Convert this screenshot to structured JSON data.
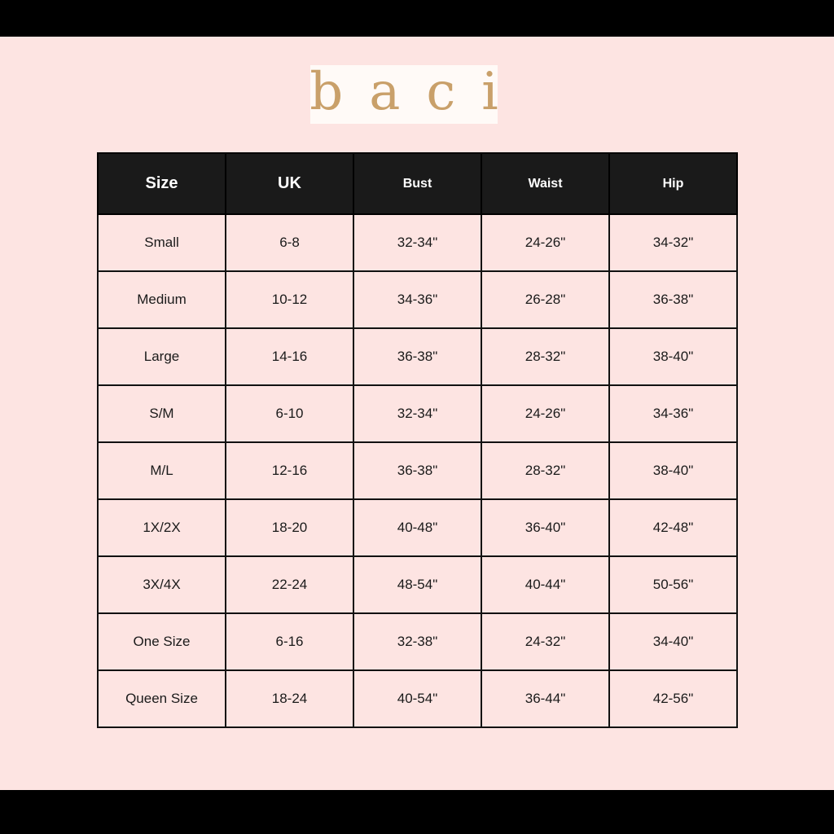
{
  "brand": {
    "logo_text": "baci",
    "logo_color": "#c9a06a"
  },
  "colors": {
    "background": "#fde4e2",
    "header_bg": "#1a1a1a"
  },
  "table": {
    "headers": [
      "Size",
      "UK",
      "Bust",
      "Waist",
      "Hip"
    ],
    "rows": [
      [
        "Small",
        "6-8",
        "32-34\"",
        "24-26\"",
        "34-32\""
      ],
      [
        "Medium",
        "10-12",
        "34-36\"",
        "26-28\"",
        "36-38\""
      ],
      [
        "Large",
        "14-16",
        "36-38\"",
        "28-32\"",
        "38-40\""
      ],
      [
        "S/M",
        "6-10",
        "32-34\"",
        "24-26\"",
        "34-36\""
      ],
      [
        "M/L",
        "12-16",
        "36-38\"",
        "28-32\"",
        "38-40\""
      ],
      [
        "1X/2X",
        "18-20",
        "40-48\"",
        "36-40\"",
        "42-48\""
      ],
      [
        "3X/4X",
        "22-24",
        "48-54\"",
        "40-44\"",
        "50-56\""
      ],
      [
        "One Size",
        "6-16",
        "32-38\"",
        "24-32\"",
        "34-40\""
      ],
      [
        "Queen Size",
        "18-24",
        "40-54\"",
        "36-44\"",
        "42-56\""
      ]
    ]
  }
}
